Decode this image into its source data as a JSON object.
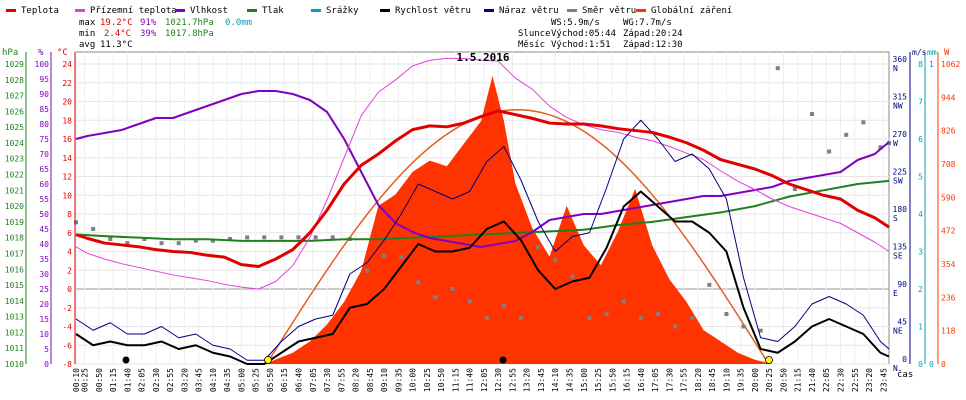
{
  "chart_data": {
    "type": "line",
    "title": "1.5.2016",
    "legend": [
      {
        "label": "Teplota",
        "color": "#e00000"
      },
      {
        "label": "Přízemní teplota",
        "color": "#e040e0"
      },
      {
        "label": "Vlhkost",
        "color": "#8000c0"
      },
      {
        "label": "Tlak",
        "color": "#208020"
      },
      {
        "label": "Srážky",
        "color": "#00a0c0"
      },
      {
        "label": "Rychlost větru",
        "color": "#000000"
      },
      {
        "label": "Náraz větru",
        "color": "#000080"
      },
      {
        "label": "Směr větru",
        "color": "#808080"
      },
      {
        "label": "Globální záření",
        "color": "#ff3300"
      }
    ],
    "stats": {
      "max": {
        "label": "max",
        "temp": "19.2°C",
        "hum": "91%",
        "press": "1021.7hPa",
        "rain": "0.0mm"
      },
      "min": {
        "label": "min",
        "temp": "2.4°C",
        "hum": "39%",
        "press": "1017.8hPa"
      },
      "avg": {
        "label": "avg",
        "temp": "11.3°C"
      }
    },
    "info": {
      "ws": "WS:5.9m/s",
      "wg": "WG:7.7m/s",
      "sun_label": "Slunce",
      "sun_rise": "Východ:05:44",
      "sun_set": "Západ:20:24",
      "moon_label": "Měsíc",
      "moon_rise": "Východ:1:51",
      "moon_set": "Západ:12:30"
    },
    "axes": {
      "hpa_unit": "hPa",
      "pct_unit": "%",
      "c_unit": "°C",
      "ms_unit": "m/s",
      "mm_unit": "mm",
      "w_unit": "W",
      "x_unit": "čas",
      "hpa_ticks": [
        "1010",
        "1011",
        "1012",
        "1013",
        "1014",
        "1015",
        "1016",
        "1017",
        "1018",
        "1019",
        "1020",
        "1021",
        "1022",
        "1023",
        "1024",
        "1025",
        "1026",
        "1027",
        "1028",
        "1029"
      ],
      "pct_ticks": [
        "0",
        "5",
        "10",
        "15",
        "20",
        "25",
        "30",
        "35",
        "40",
        "45",
        "50",
        "55",
        "60",
        "65",
        "70",
        "75",
        "80",
        "85",
        "90",
        "95",
        "100"
      ],
      "c_ticks": [
        "-8",
        "-6",
        "-4",
        "-2",
        "0",
        "2",
        "4",
        "6",
        "8",
        "10",
        "12",
        "14",
        "16",
        "18",
        "20",
        "22",
        "24"
      ],
      "ms_ticks": [
        "0",
        "1",
        "2",
        "3",
        "4",
        "5",
        "6",
        "7",
        "8"
      ],
      "mm_ticks": [
        "0",
        "1"
      ],
      "w_ticks": [
        "0",
        "118",
        "236",
        "354",
        "472",
        "590",
        "708",
        "826",
        "944",
        "1062"
      ],
      "deg_ticks": [
        {
          "deg": "0",
          "dir": "N"
        },
        {
          "deg": "45",
          "dir": "NE"
        },
        {
          "deg": "90",
          "dir": "E"
        },
        {
          "deg": "135",
          "dir": "SE"
        },
        {
          "deg": "180",
          "dir": "S"
        },
        {
          "deg": "225",
          "dir": "SW"
        },
        {
          "deg": "270",
          "dir": "W"
        },
        {
          "deg": "315",
          "dir": "NW"
        },
        {
          "deg": "360",
          "dir": "N"
        }
      ],
      "x_ticks": [
        "00:10",
        "00:25",
        "00:50",
        "01:15",
        "01:40",
        "02:05",
        "02:30",
        "02:55",
        "03:20",
        "03:45",
        "04:10",
        "04:35",
        "05:00",
        "05:25",
        "05:50",
        "06:15",
        "06:40",
        "07:05",
        "07:30",
        "07:55",
        "08:20",
        "08:45",
        "09:10",
        "09:35",
        "10:00",
        "10:25",
        "10:50",
        "11:15",
        "11:40",
        "12:05",
        "12:30",
        "12:55",
        "13:20",
        "13:45",
        "14:10",
        "14:35",
        "15:00",
        "15:25",
        "15:50",
        "16:15",
        "16:40",
        "17:05",
        "17:30",
        "17:55",
        "18:20",
        "18:45",
        "19:10",
        "19:35",
        "20:00",
        "20:25",
        "20:50",
        "21:15",
        "21:40",
        "22:05",
        "22:30",
        "22:55",
        "23:20",
        "23:45"
      ]
    },
    "series": {
      "temperature_c": {
        "x": [
          "00:10",
          "00:30",
          "01:00",
          "01:30",
          "02:00",
          "02:30",
          "03:00",
          "03:30",
          "04:00",
          "04:30",
          "05:00",
          "05:30",
          "06:00",
          "06:30",
          "07:00",
          "07:30",
          "08:00",
          "08:30",
          "09:00",
          "09:30",
          "10:00",
          "10:30",
          "11:00",
          "11:30",
          "12:00",
          "12:30",
          "13:00",
          "13:30",
          "14:00",
          "14:30",
          "15:00",
          "15:30",
          "16:00",
          "16:30",
          "17:00",
          "17:30",
          "18:00",
          "18:30",
          "19:00",
          "19:30",
          "20:00",
          "20:30",
          "21:00",
          "21:30",
          "22:00",
          "22:30",
          "23:00",
          "23:30",
          "23:55"
        ],
        "y": [
          5.8,
          5.4,
          4.9,
          4.7,
          4.5,
          4.2,
          4.0,
          3.9,
          3.6,
          3.4,
          2.6,
          2.4,
          3.2,
          4.2,
          6.0,
          8.4,
          11.2,
          13.2,
          14.4,
          15.8,
          17.0,
          17.4,
          17.3,
          17.7,
          18.4,
          19.0,
          18.6,
          18.2,
          17.7,
          17.6,
          17.6,
          17.4,
          17.1,
          16.9,
          16.7,
          16.2,
          15.6,
          14.8,
          13.8,
          13.3,
          12.8,
          12.1,
          11.2,
          10.6,
          10.0,
          9.6,
          8.4,
          7.6,
          6.6
        ]
      },
      "ground_temperature_c": {
        "x": [
          "00:10",
          "00:30",
          "01:00",
          "01:30",
          "02:00",
          "02:30",
          "03:00",
          "03:30",
          "04:00",
          "04:30",
          "05:00",
          "05:30",
          "06:00",
          "06:30",
          "07:00",
          "07:30",
          "08:00",
          "08:30",
          "09:00",
          "09:30",
          "10:00",
          "10:30",
          "11:00",
          "11:30",
          "12:00",
          "12:30",
          "13:00",
          "13:30",
          "14:00",
          "14:30",
          "15:00",
          "15:30",
          "16:00",
          "16:30",
          "17:00",
          "17:30",
          "18:00",
          "18:30",
          "19:00",
          "19:30",
          "20:00",
          "20:30",
          "21:00",
          "21:30",
          "22:00",
          "22:30",
          "23:00",
          "23:30",
          "23:55"
        ],
        "y": [
          4.5,
          3.8,
          3.2,
          2.7,
          2.3,
          1.9,
          1.5,
          1.2,
          0.9,
          0.5,
          0.2,
          0.0,
          0.8,
          2.5,
          5.5,
          9.5,
          14.0,
          18.5,
          21.0,
          22.3,
          23.8,
          24.4,
          24.6,
          24.6,
          24.4,
          24.3,
          22.5,
          21.3,
          19.5,
          18.3,
          17.5,
          17.0,
          16.7,
          16.2,
          15.8,
          15.2,
          14.5,
          13.8,
          12.6,
          11.5,
          10.6,
          9.6,
          8.8,
          8.2,
          7.6,
          7.0,
          6.0,
          5.0,
          4.0
        ]
      },
      "humidity_pct": {
        "x": [
          "00:10",
          "00:30",
          "01:00",
          "01:30",
          "02:00",
          "02:30",
          "03:00",
          "03:30",
          "04:00",
          "04:30",
          "05:00",
          "05:30",
          "06:00",
          "06:30",
          "07:00",
          "07:30",
          "08:00",
          "08:30",
          "09:00",
          "09:30",
          "10:00",
          "10:30",
          "11:00",
          "11:30",
          "12:00",
          "12:30",
          "13:00",
          "13:30",
          "14:00",
          "14:30",
          "15:00",
          "15:30",
          "16:00",
          "16:30",
          "17:00",
          "17:30",
          "18:00",
          "18:30",
          "19:00",
          "19:30",
          "20:00",
          "20:30",
          "21:00",
          "21:30",
          "22:00",
          "22:30",
          "23:00",
          "23:30",
          "23:55"
        ],
        "y": [
          75,
          76,
          77,
          78,
          80,
          82,
          82,
          84,
          86,
          88,
          90,
          91,
          91,
          90,
          88,
          84,
          75,
          64,
          53,
          47,
          44,
          42,
          41,
          40,
          39,
          40,
          41,
          44,
          48,
          49,
          50,
          50,
          51,
          52,
          53,
          54,
          55,
          56,
          56,
          57,
          58,
          59,
          61,
          62,
          63,
          64,
          68,
          70,
          74
        ]
      },
      "pressure_hpa": {
        "x": [
          "00:10",
          "01:00",
          "02:00",
          "03:00",
          "04:00",
          "05:00",
          "06:00",
          "07:00",
          "08:00",
          "09:00",
          "10:00",
          "11:00",
          "12:00",
          "13:00",
          "14:00",
          "15:00",
          "16:00",
          "17:00",
          "18:00",
          "19:00",
          "20:00",
          "21:00",
          "22:00",
          "23:00",
          "23:55"
        ],
        "y": [
          1018.2,
          1018.1,
          1018.0,
          1017.9,
          1017.9,
          1017.8,
          1017.8,
          1017.8,
          1017.9,
          1017.9,
          1018.0,
          1018.1,
          1018.2,
          1018.3,
          1018.4,
          1018.5,
          1018.8,
          1019.0,
          1019.3,
          1019.6,
          1020.0,
          1020.6,
          1021.0,
          1021.4,
          1021.6
        ]
      },
      "wind_direction_deg": {
        "x": [
          "00:10",
          "00:40",
          "01:10",
          "01:40",
          "02:10",
          "02:40",
          "03:10",
          "03:40",
          "04:10",
          "04:40",
          "05:10",
          "05:40",
          "06:10",
          "06:40",
          "07:10",
          "07:40",
          "08:10",
          "08:40",
          "09:10",
          "09:40",
          "10:10",
          "10:40",
          "11:10",
          "11:40",
          "12:10",
          "12:40",
          "13:10",
          "13:40",
          "14:10",
          "14:40",
          "15:10",
          "15:40",
          "16:10",
          "16:40",
          "17:10",
          "17:40",
          "18:10",
          "18:40",
          "19:10",
          "19:40",
          "20:10",
          "20:40",
          "21:10",
          "21:40",
          "22:10",
          "22:40",
          "23:10",
          "23:40",
          "23:55"
        ],
        "y": [
          170,
          162,
          150,
          145,
          150,
          145,
          145,
          148,
          148,
          150,
          152,
          152,
          152,
          152,
          152,
          152,
          150,
          112,
          130,
          128,
          98,
          80,
          90,
          75,
          55,
          70,
          55,
          140,
          125,
          105,
          55,
          60,
          75,
          55,
          60,
          45,
          55,
          95,
          60,
          45,
          40,
          355,
          210,
          300,
          255,
          275,
          290,
          260,
          265
        ]
      },
      "wind_speed_ms": {
        "x": [
          "00:10",
          "00:40",
          "01:10",
          "01:40",
          "02:10",
          "02:40",
          "03:10",
          "03:40",
          "04:10",
          "04:40",
          "05:10",
          "05:40",
          "06:10",
          "06:40",
          "07:10",
          "07:40",
          "08:10",
          "08:40",
          "09:10",
          "09:40",
          "10:10",
          "10:40",
          "11:10",
          "11:40",
          "12:10",
          "12:40",
          "13:10",
          "13:40",
          "14:10",
          "14:40",
          "15:10",
          "15:40",
          "16:10",
          "16:40",
          "17:10",
          "17:40",
          "18:10",
          "18:40",
          "19:10",
          "19:40",
          "20:10",
          "20:40",
          "21:10",
          "21:40",
          "22:10",
          "22:40",
          "23:10",
          "23:40",
          "23:55"
        ],
        "y": [
          0.8,
          0.5,
          0.6,
          0.5,
          0.5,
          0.6,
          0.4,
          0.5,
          0.3,
          0.2,
          0.0,
          0.0,
          0.3,
          0.6,
          0.7,
          0.8,
          1.5,
          1.6,
          2.0,
          2.6,
          3.2,
          3.0,
          3.0,
          3.1,
          3.6,
          3.8,
          3.3,
          2.5,
          2.0,
          2.2,
          2.3,
          3.1,
          4.2,
          4.6,
          4.2,
          3.8,
          3.8,
          3.5,
          3.0,
          1.5,
          0.4,
          0.3,
          0.6,
          1.0,
          1.2,
          1.0,
          0.8,
          0.3,
          0.2
        ]
      },
      "wind_gust_ms": {
        "x": [
          "00:10",
          "00:40",
          "01:10",
          "01:40",
          "02:10",
          "02:40",
          "03:10",
          "03:40",
          "04:10",
          "04:40",
          "05:10",
          "05:40",
          "06:10",
          "06:40",
          "07:10",
          "07:40",
          "08:10",
          "08:40",
          "09:10",
          "09:40",
          "10:10",
          "10:40",
          "11:10",
          "11:40",
          "12:10",
          "12:40",
          "13:10",
          "13:40",
          "14:10",
          "14:40",
          "15:10",
          "15:40",
          "16:10",
          "16:40",
          "17:10",
          "17:40",
          "18:10",
          "18:40",
          "19:10",
          "19:40",
          "20:10",
          "20:40",
          "21:10",
          "21:40",
          "22:10",
          "22:40",
          "23:10",
          "23:40",
          "23:55"
        ],
        "y": [
          1.2,
          0.9,
          1.1,
          0.8,
          0.8,
          1.0,
          0.7,
          0.8,
          0.5,
          0.4,
          0.1,
          0.1,
          0.6,
          1.0,
          1.2,
          1.3,
          2.4,
          2.7,
          3.3,
          4.0,
          4.8,
          4.6,
          4.4,
          4.6,
          5.4,
          5.8,
          4.9,
          3.8,
          3.0,
          3.4,
          3.5,
          4.7,
          6.0,
          6.5,
          6.0,
          5.4,
          5.6,
          5.2,
          4.4,
          2.3,
          0.7,
          0.6,
          1.0,
          1.6,
          1.8,
          1.6,
          1.3,
          0.6,
          0.4
        ]
      },
      "global_radiation_wm2": {
        "x": [
          "05:40",
          "06:30",
          "07:00",
          "07:30",
          "08:00",
          "08:30",
          "09:00",
          "09:30",
          "10:00",
          "10:30",
          "11:00",
          "11:30",
          "12:00",
          "12:20",
          "12:40",
          "13:00",
          "13:30",
          "14:00",
          "14:30",
          "15:00",
          "15:30",
          "16:00",
          "16:30",
          "17:00",
          "17:30",
          "18:00",
          "18:30",
          "19:00",
          "19:30",
          "20:00",
          "20:30"
        ],
        "y": [
          0,
          40,
          80,
          140,
          220,
          330,
          560,
          600,
          680,
          720,
          700,
          780,
          860,
          1020,
          860,
          640,
          480,
          380,
          560,
          420,
          350,
          470,
          620,
          420,
          300,
          220,
          120,
          80,
          40,
          15,
          0
        ]
      },
      "rain_mm": {
        "x": [],
        "y": []
      }
    }
  }
}
